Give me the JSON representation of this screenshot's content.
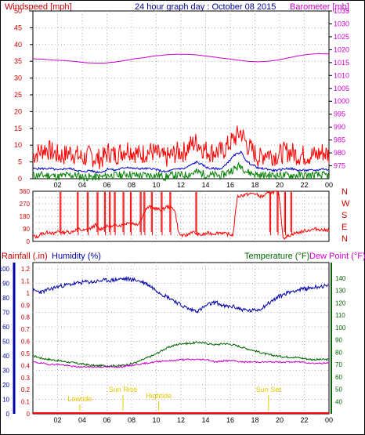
{
  "title": "24 hour graph day : October 08 2015",
  "colors": {
    "wind": "#ff0000",
    "windavg": "#0000cc",
    "windlow": "#008000",
    "baro": "#cc00cc",
    "dir": "#ff0000",
    "humidity": "#0000aa",
    "temp": "#006600",
    "dew": "#cc00cc",
    "rain": "#ff0000",
    "events": "#e6c800",
    "grid": "#b0b0b0"
  },
  "chart_data": [
    {
      "type": "line",
      "name": "wind-baro",
      "left_label": "Windspeed [mph]",
      "right_label": "Barometer [mb]",
      "x_ticks": [
        "02",
        "04",
        "06",
        "08",
        "10",
        "12",
        "14",
        "16",
        "18",
        "20",
        "22",
        "00"
      ],
      "y_left": {
        "min": 0,
        "max": 50,
        "ticks": [
          0,
          5,
          10,
          15,
          20,
          25,
          30,
          35,
          40,
          45,
          50
        ]
      },
      "y_right": {
        "min": 970,
        "max": 1035,
        "ticks": [
          975,
          980,
          985,
          990,
          995,
          1000,
          1005,
          1010,
          1015,
          1020,
          1025,
          1030,
          1035
        ]
      },
      "series": [
        {
          "key": "gust",
          "values": [
            7,
            8,
            9,
            8,
            7,
            7,
            8,
            7,
            6,
            7,
            6,
            6,
            8,
            7,
            8,
            9,
            8,
            7,
            8,
            8,
            7,
            6,
            7,
            8,
            8,
            10,
            11,
            9,
            8,
            8,
            8,
            10,
            12,
            14,
            10,
            8,
            6,
            8,
            7,
            7,
            8,
            8,
            7,
            7,
            7,
            7,
            8,
            7
          ]
        },
        {
          "key": "avg",
          "values": [
            3,
            3,
            3,
            3,
            2.5,
            3,
            3,
            2.5,
            2,
            2.5,
            2,
            2,
            3,
            2.5,
            3,
            3.5,
            3,
            3,
            3,
            3,
            2.5,
            2,
            2.5,
            3,
            3,
            4,
            5,
            4,
            3,
            3,
            3,
            5,
            7,
            8,
            5,
            4,
            3,
            3,
            2.5,
            2.5,
            3,
            3,
            2.5,
            2.5,
            2.5,
            2.5,
            3,
            2.5
          ]
        },
        {
          "key": "low",
          "values": [
            1,
            1,
            1,
            1,
            0.5,
            1,
            1,
            1,
            0.5,
            0.5,
            0.5,
            0.5,
            1,
            1,
            1,
            1.5,
            1,
            1,
            1,
            1,
            1,
            0.5,
            1,
            1,
            1,
            1.5,
            2,
            1.5,
            1,
            1,
            1,
            2,
            3,
            4,
            2,
            1.5,
            1,
            1,
            1,
            1,
            1,
            1,
            1,
            1,
            1,
            1,
            1,
            1
          ]
        },
        {
          "key": "baro",
          "values": [
            1016.5,
            1016.3,
            1016,
            1015.8,
            1015.5,
            1015,
            1014.8,
            1014.8,
            1015.2,
            1015.8,
            1016.5,
            1017,
            1017.6,
            1018,
            1018.2,
            1018.2,
            1018,
            1017.5,
            1017,
            1016.5,
            1016,
            1015.5,
            1015.3,
            1015.5,
            1016,
            1016.8,
            1017.6,
            1018.2,
            1018.5,
            1018.3
          ]
        }
      ]
    },
    {
      "type": "line",
      "name": "wind-direction",
      "y_left": {
        "min": 0,
        "max": 360,
        "ticks": [
          0,
          45,
          90,
          135,
          180,
          225,
          270,
          315,
          360
        ]
      },
      "right_labels": [
        "N",
        "W",
        "S",
        "E",
        "N"
      ],
      "series": [
        {
          "key": "dir",
          "values": [
            40,
            30,
            55,
            60,
            70,
            50,
            75,
            60,
            70,
            65,
            80,
            90,
            75,
            85,
            95,
            120,
            85,
            100,
            110,
            105,
            120,
            115,
            125,
            140,
            130,
            120,
            160,
            230,
            250,
            240,
            230,
            225,
            250,
            245,
            230,
            55,
            40,
            45,
            70,
            60,
            45,
            50,
            60,
            55,
            60,
            65,
            55,
            50,
            45,
            320,
            330,
            335,
            340,
            345,
            330,
            320,
            340,
            350,
            355,
            345,
            25,
            35,
            50,
            60,
            65,
            75,
            80,
            85,
            90,
            85,
            80,
            85
          ]
        },
        {
          "key": "spikes",
          "values": [
            2.2,
            3.6,
            4.4,
            5.2,
            5.8,
            6.2,
            6.6,
            7.3,
            7.9,
            8.7,
            9.0,
            9.6,
            10.4,
            11.1,
            13.2,
            19.2,
            19.8,
            20.4,
            20.9
          ]
        }
      ]
    },
    {
      "type": "line",
      "name": "humidity-temp-rain",
      "left_label": "Rainfall (.in)",
      "left2_label": "Humidity (%)",
      "right_label": "Temperature (°F)",
      "right2_label": "Dew Point (°F)",
      "y_rain": {
        "min": 0,
        "max": 1.2,
        "ticks": [
          0,
          0.1,
          0.2,
          0.3,
          0.4,
          0.5,
          0.6,
          0.7,
          0.8,
          0.9,
          1,
          1.1,
          1.2
        ]
      },
      "y_hum": {
        "min": 0,
        "max": 100,
        "ticks": [
          0,
          10,
          20,
          30,
          40,
          50,
          60,
          70,
          80,
          90,
          100
        ]
      },
      "y_temp": {
        "min": 30,
        "max": 150,
        "ticks": [
          40,
          50,
          60,
          70,
          80,
          90,
          100,
          110,
          120,
          130,
          140
        ]
      },
      "series": [
        {
          "key": "humidity",
          "values": [
            85,
            84,
            86,
            88,
            89,
            90,
            91,
            91,
            92,
            92,
            93,
            93,
            92,
            90,
            86,
            82,
            79,
            75,
            72,
            71,
            75,
            77,
            74,
            74,
            72,
            71,
            72,
            76,
            80,
            83,
            85,
            86,
            87,
            88,
            88
          ]
        },
        {
          "key": "temp",
          "values": [
            77,
            75,
            74,
            73,
            72,
            71,
            70,
            69,
            69,
            69,
            69,
            70,
            72,
            75,
            78,
            82,
            85,
            87,
            87,
            88,
            87,
            86,
            87,
            86,
            84,
            82,
            80,
            78,
            77,
            76,
            76,
            75,
            74,
            74,
            74
          ]
        },
        {
          "key": "dew",
          "values": [
            72,
            71,
            70,
            70,
            69,
            68,
            68,
            68,
            68,
            68,
            68,
            69,
            70,
            71,
            72,
            73,
            73,
            74,
            74,
            74,
            74,
            72,
            73,
            73,
            72,
            72,
            72,
            72,
            72,
            72,
            72,
            72,
            71,
            71,
            71
          ]
        },
        {
          "key": "rain",
          "values": [
            0,
            0,
            0,
            0,
            0,
            0,
            0,
            0,
            0,
            0,
            0,
            0,
            0,
            0,
            0,
            0,
            0,
            0,
            0,
            0,
            0,
            0,
            0,
            0,
            0,
            0,
            0,
            0,
            0,
            0,
            0,
            0,
            0,
            0,
            0
          ]
        }
      ],
      "events": [
        {
          "label": "Lowtide",
          "hour": 3.8
        },
        {
          "label": "Sun Rise",
          "hour": 7.3
        },
        {
          "label": "Hightide",
          "hour": 10.2
        },
        {
          "label": "Sun Set",
          "hour": 19.1
        }
      ]
    }
  ]
}
